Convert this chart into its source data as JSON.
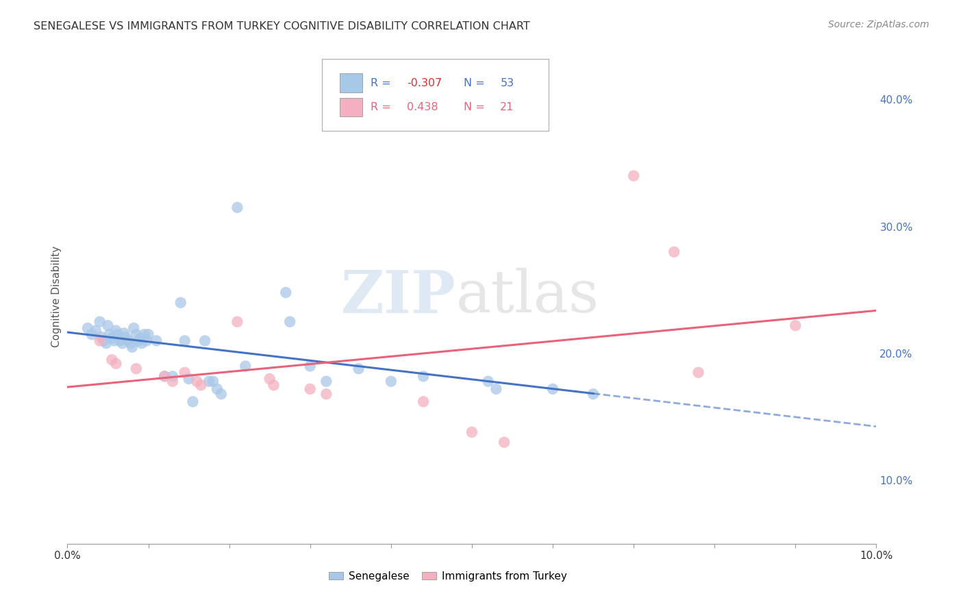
{
  "title": "SENEGALESE VS IMMIGRANTS FROM TURKEY COGNITIVE DISABILITY CORRELATION CHART",
  "source": "Source: ZipAtlas.com",
  "ylabel": "Cognitive Disability",
  "ylabel_right_ticks": [
    "10.0%",
    "20.0%",
    "30.0%",
    "40.0%"
  ],
  "ylabel_right_vals": [
    0.1,
    0.2,
    0.3,
    0.4
  ],
  "xmin": 0.0,
  "xmax": 0.1,
  "ymin": 0.05,
  "ymax": 0.44,
  "blue_R": "-0.307",
  "blue_N": "53",
  "pink_R": "0.438",
  "pink_N": "21",
  "blue_color": "#a8c8e8",
  "pink_color": "#f4b0c0",
  "blue_line_color": "#4472c4",
  "pink_line_color": "#e8637a",
  "blue_dots": [
    [
      0.0025,
      0.22
    ],
    [
      0.003,
      0.215
    ],
    [
      0.0035,
      0.218
    ],
    [
      0.004,
      0.225
    ],
    [
      0.0042,
      0.213
    ],
    [
      0.0045,
      0.21
    ],
    [
      0.0048,
      0.208
    ],
    [
      0.005,
      0.222
    ],
    [
      0.0052,
      0.215
    ],
    [
      0.0055,
      0.212
    ],
    [
      0.0058,
      0.21
    ],
    [
      0.006,
      0.218
    ],
    [
      0.0062,
      0.215
    ],
    [
      0.0065,
      0.21
    ],
    [
      0.0068,
      0.208
    ],
    [
      0.007,
      0.216
    ],
    [
      0.0072,
      0.213
    ],
    [
      0.0075,
      0.21
    ],
    [
      0.0078,
      0.208
    ],
    [
      0.008,
      0.205
    ],
    [
      0.0082,
      0.22
    ],
    [
      0.0085,
      0.215
    ],
    [
      0.0088,
      0.21
    ],
    [
      0.009,
      0.212
    ],
    [
      0.0092,
      0.208
    ],
    [
      0.0095,
      0.215
    ],
    [
      0.0098,
      0.21
    ],
    [
      0.01,
      0.215
    ],
    [
      0.011,
      0.21
    ],
    [
      0.012,
      0.182
    ],
    [
      0.013,
      0.182
    ],
    [
      0.014,
      0.24
    ],
    [
      0.0145,
      0.21
    ],
    [
      0.015,
      0.18
    ],
    [
      0.0155,
      0.162
    ],
    [
      0.017,
      0.21
    ],
    [
      0.0175,
      0.178
    ],
    [
      0.018,
      0.178
    ],
    [
      0.0185,
      0.172
    ],
    [
      0.019,
      0.168
    ],
    [
      0.021,
      0.315
    ],
    [
      0.022,
      0.19
    ],
    [
      0.027,
      0.248
    ],
    [
      0.0275,
      0.225
    ],
    [
      0.03,
      0.19
    ],
    [
      0.032,
      0.178
    ],
    [
      0.036,
      0.188
    ],
    [
      0.04,
      0.178
    ],
    [
      0.044,
      0.182
    ],
    [
      0.052,
      0.178
    ],
    [
      0.053,
      0.172
    ],
    [
      0.06,
      0.172
    ],
    [
      0.065,
      0.168
    ]
  ],
  "pink_dots": [
    [
      0.004,
      0.21
    ],
    [
      0.0055,
      0.195
    ],
    [
      0.006,
      0.192
    ],
    [
      0.0085,
      0.188
    ],
    [
      0.012,
      0.182
    ],
    [
      0.013,
      0.178
    ],
    [
      0.0145,
      0.185
    ],
    [
      0.016,
      0.178
    ],
    [
      0.0165,
      0.175
    ],
    [
      0.021,
      0.225
    ],
    [
      0.025,
      0.18
    ],
    [
      0.0255,
      0.175
    ],
    [
      0.03,
      0.172
    ],
    [
      0.032,
      0.168
    ],
    [
      0.044,
      0.162
    ],
    [
      0.05,
      0.138
    ],
    [
      0.054,
      0.13
    ],
    [
      0.07,
      0.34
    ],
    [
      0.075,
      0.28
    ],
    [
      0.078,
      0.185
    ],
    [
      0.09,
      0.222
    ]
  ],
  "grid_color": "#cccccc",
  "bg_color": "#ffffff",
  "watermark_zip": "ZIP",
  "watermark_atlas": "atlas"
}
